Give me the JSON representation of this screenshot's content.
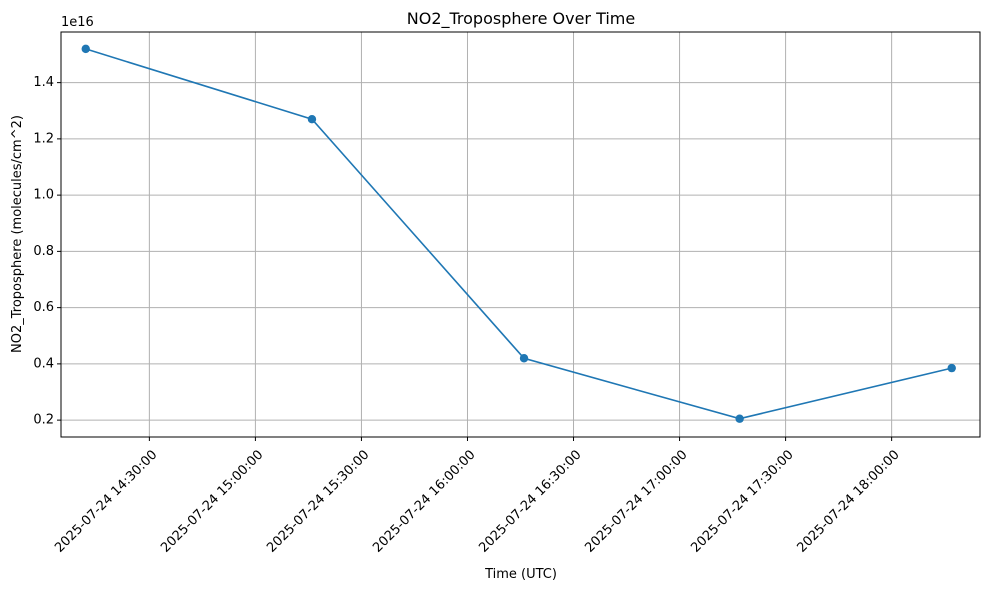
{
  "chart_data": {
    "type": "line",
    "title": "NO2_Troposphere Over Time",
    "xlabel": "Time (UTC)",
    "ylabel": "NO2_Troposphere (molecules/cm^2)",
    "y_offset_label": "1e16",
    "y_scale_factor": 1e+16,
    "grid": true,
    "line_color": "#1f77b4",
    "x_range": [
      "2025-07-24 14:05:00",
      "2025-07-24 18:25:00"
    ],
    "ylim": [
      0.14,
      1.58
    ],
    "x_ticks": [
      "2025-07-24 14:30:00",
      "2025-07-24 15:00:00",
      "2025-07-24 15:30:00",
      "2025-07-24 16:00:00",
      "2025-07-24 16:30:00",
      "2025-07-24 17:00:00",
      "2025-07-24 17:30:00",
      "2025-07-24 18:00:00"
    ],
    "y_ticks": [
      "0.2",
      "0.4",
      "0.6",
      "0.8",
      "1.0",
      "1.2",
      "1.4"
    ],
    "series": [
      {
        "x": [
          "2025-07-24 14:12:00",
          "2025-07-24 15:16:00",
          "2025-07-24 16:16:00",
          "2025-07-24 17:17:00",
          "2025-07-24 18:17:00"
        ],
        "values": [
          1.52e+16,
          1.27e+16,
          4200000000000000.0,
          2050000000000000.0,
          3850000000000000.0
        ]
      }
    ]
  }
}
